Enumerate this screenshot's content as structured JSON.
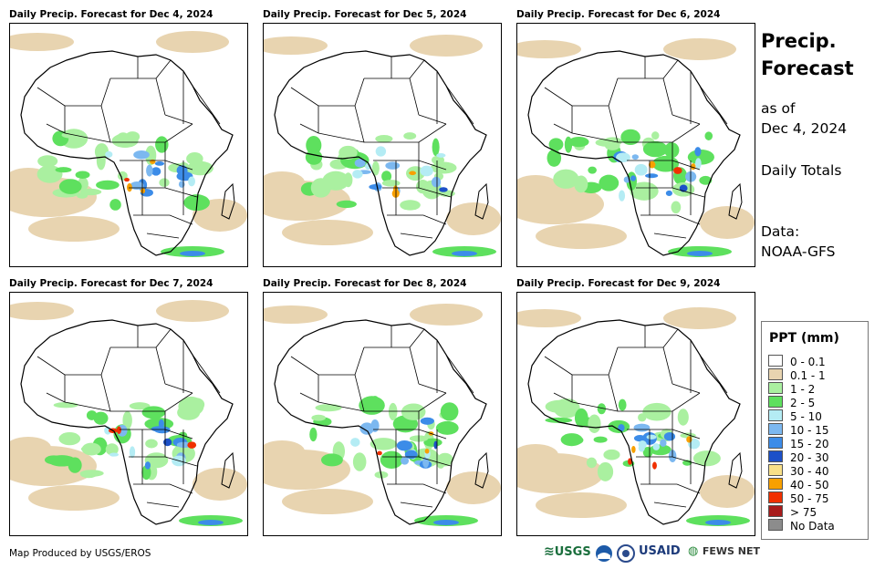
{
  "panels": [
    {
      "title": "Daily Precip. Forecast for Dec 4, 2024"
    },
    {
      "title": "Daily Precip. Forecast for Dec 5, 2024"
    },
    {
      "title": "Daily Precip. Forecast for Dec 6, 2024"
    },
    {
      "title": "Daily Precip. Forecast for Dec 7, 2024"
    },
    {
      "title": "Daily Precip. Forecast for Dec 8, 2024"
    },
    {
      "title": "Daily Precip. Forecast for Dec 9, 2024"
    }
  ],
  "side": {
    "title_line1": "Precip.",
    "title_line2": "Forecast",
    "asof_line1": "as of",
    "asof_line2": "Dec 4, 2024",
    "totals": "Daily Totals",
    "data_line1": "Data:",
    "data_line2": "NOAA-GFS"
  },
  "legend": {
    "title": "PPT (mm)",
    "items": [
      {
        "label": "0 - 0.1",
        "color": "#ffffff"
      },
      {
        "label": "0.1 - 1",
        "color": "#e8d4b0"
      },
      {
        "label": "1 - 2",
        "color": "#aaf0a0"
      },
      {
        "label": "2 - 5",
        "color": "#5ee05e"
      },
      {
        "label": "5 - 10",
        "color": "#b4ecf4"
      },
      {
        "label": "10 - 15",
        "color": "#7cb8f0"
      },
      {
        "label": "15 - 20",
        "color": "#3c8ce8"
      },
      {
        "label": "20 - 30",
        "color": "#1c50c8"
      },
      {
        "label": "30 - 40",
        "color": "#f8e088"
      },
      {
        "label": "40 - 50",
        "color": "#f8a000"
      },
      {
        "label": "50 - 75",
        "color": "#f03000"
      },
      {
        "label": "> 75",
        "color": "#a81c1c"
      },
      {
        "label": "No Data",
        "color": "#8c8c8c"
      }
    ]
  },
  "footer": {
    "credit": "Map Produced by USGS/EROS",
    "logos": {
      "usgs": "USGS",
      "usaid": "USAID",
      "fews": "FEWS NET"
    }
  }
}
